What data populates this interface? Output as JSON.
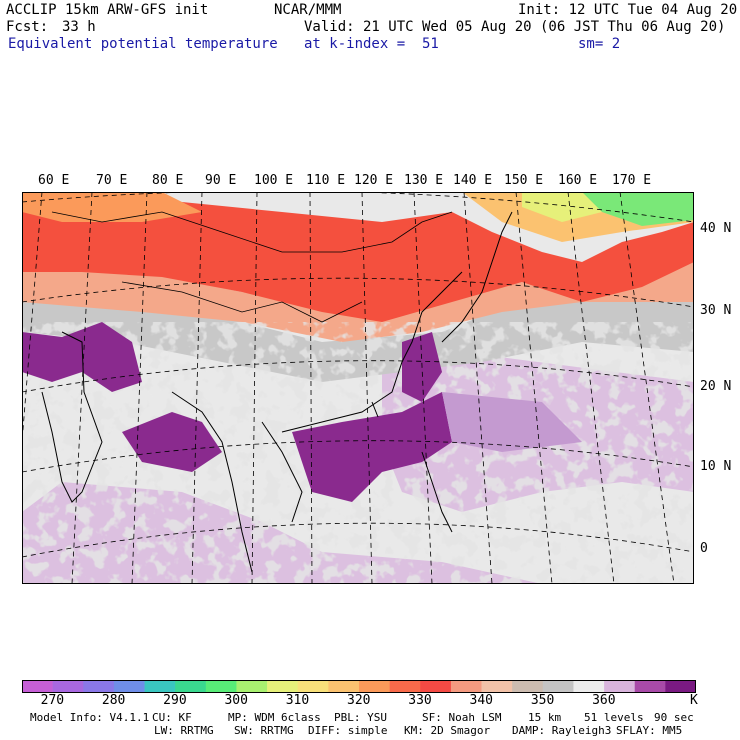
{
  "header": {
    "model": "ACCLIP 15km ARW-GFS init",
    "org": "NCAR/MMM",
    "init": "Init: 12 UTC Tue 04 Aug 20",
    "fcst_label": "Fcst:",
    "fcst_value": "33 h",
    "valid": "Valid: 21 UTC Wed 05 Aug 20 (06 JST Thu 06 Aug 20)",
    "field": "Equivalent potential temperature",
    "level": "at k-index =  51",
    "smooth": "sm= 2"
  },
  "map": {
    "lon_labels": [
      "60 E",
      "70 E",
      "80 E",
      "90 E",
      "100 E",
      "110 E",
      "120 E",
      "130 E",
      "140 E",
      "150 E",
      "160 E",
      "170 E"
    ],
    "lat_labels": [
      "40 N",
      "30 N",
      "20 N",
      "10 N",
      "0"
    ]
  },
  "colorbar": {
    "colors": [
      "#c65fd6",
      "#a868e0",
      "#8a78e8",
      "#6f8ee8",
      "#3ac6c0",
      "#3ad88f",
      "#58ec78",
      "#a8f070",
      "#e6f07a",
      "#f8e07a",
      "#fbc270",
      "#fb9a5a",
      "#f86a4a",
      "#f44a44",
      "#f49a80",
      "#f2c2a8",
      "#ccbcb0",
      "#c4c4c4",
      "#ececec",
      "#d8b4dc",
      "#a84aa8",
      "#7a1a82"
    ],
    "labels": [
      "270",
      "280",
      "290",
      "300",
      "310",
      "320",
      "330",
      "340",
      "350",
      "360"
    ],
    "unit": "K"
  },
  "footer": {
    "line1": [
      {
        "text": "Model Info: V4.1.1"
      },
      {
        "text": "CU: KF"
      },
      {
        "text": "MP: WDM 6class"
      },
      {
        "text": "PBL: YSU"
      },
      {
        "text": "SF: Noah LSM"
      },
      {
        "text": "15 km"
      },
      {
        "text": "51 levels"
      },
      {
        "text": "90 sec"
      }
    ],
    "line2": [
      {
        "text": "LW: RRTMG"
      },
      {
        "text": "SW: RRTMG"
      },
      {
        "text": "DIFF: simple"
      },
      {
        "text": "KM: 2D Smagor"
      },
      {
        "text": "DAMP: Rayleigh3"
      },
      {
        "text": "SFLAY: MM5"
      }
    ]
  }
}
